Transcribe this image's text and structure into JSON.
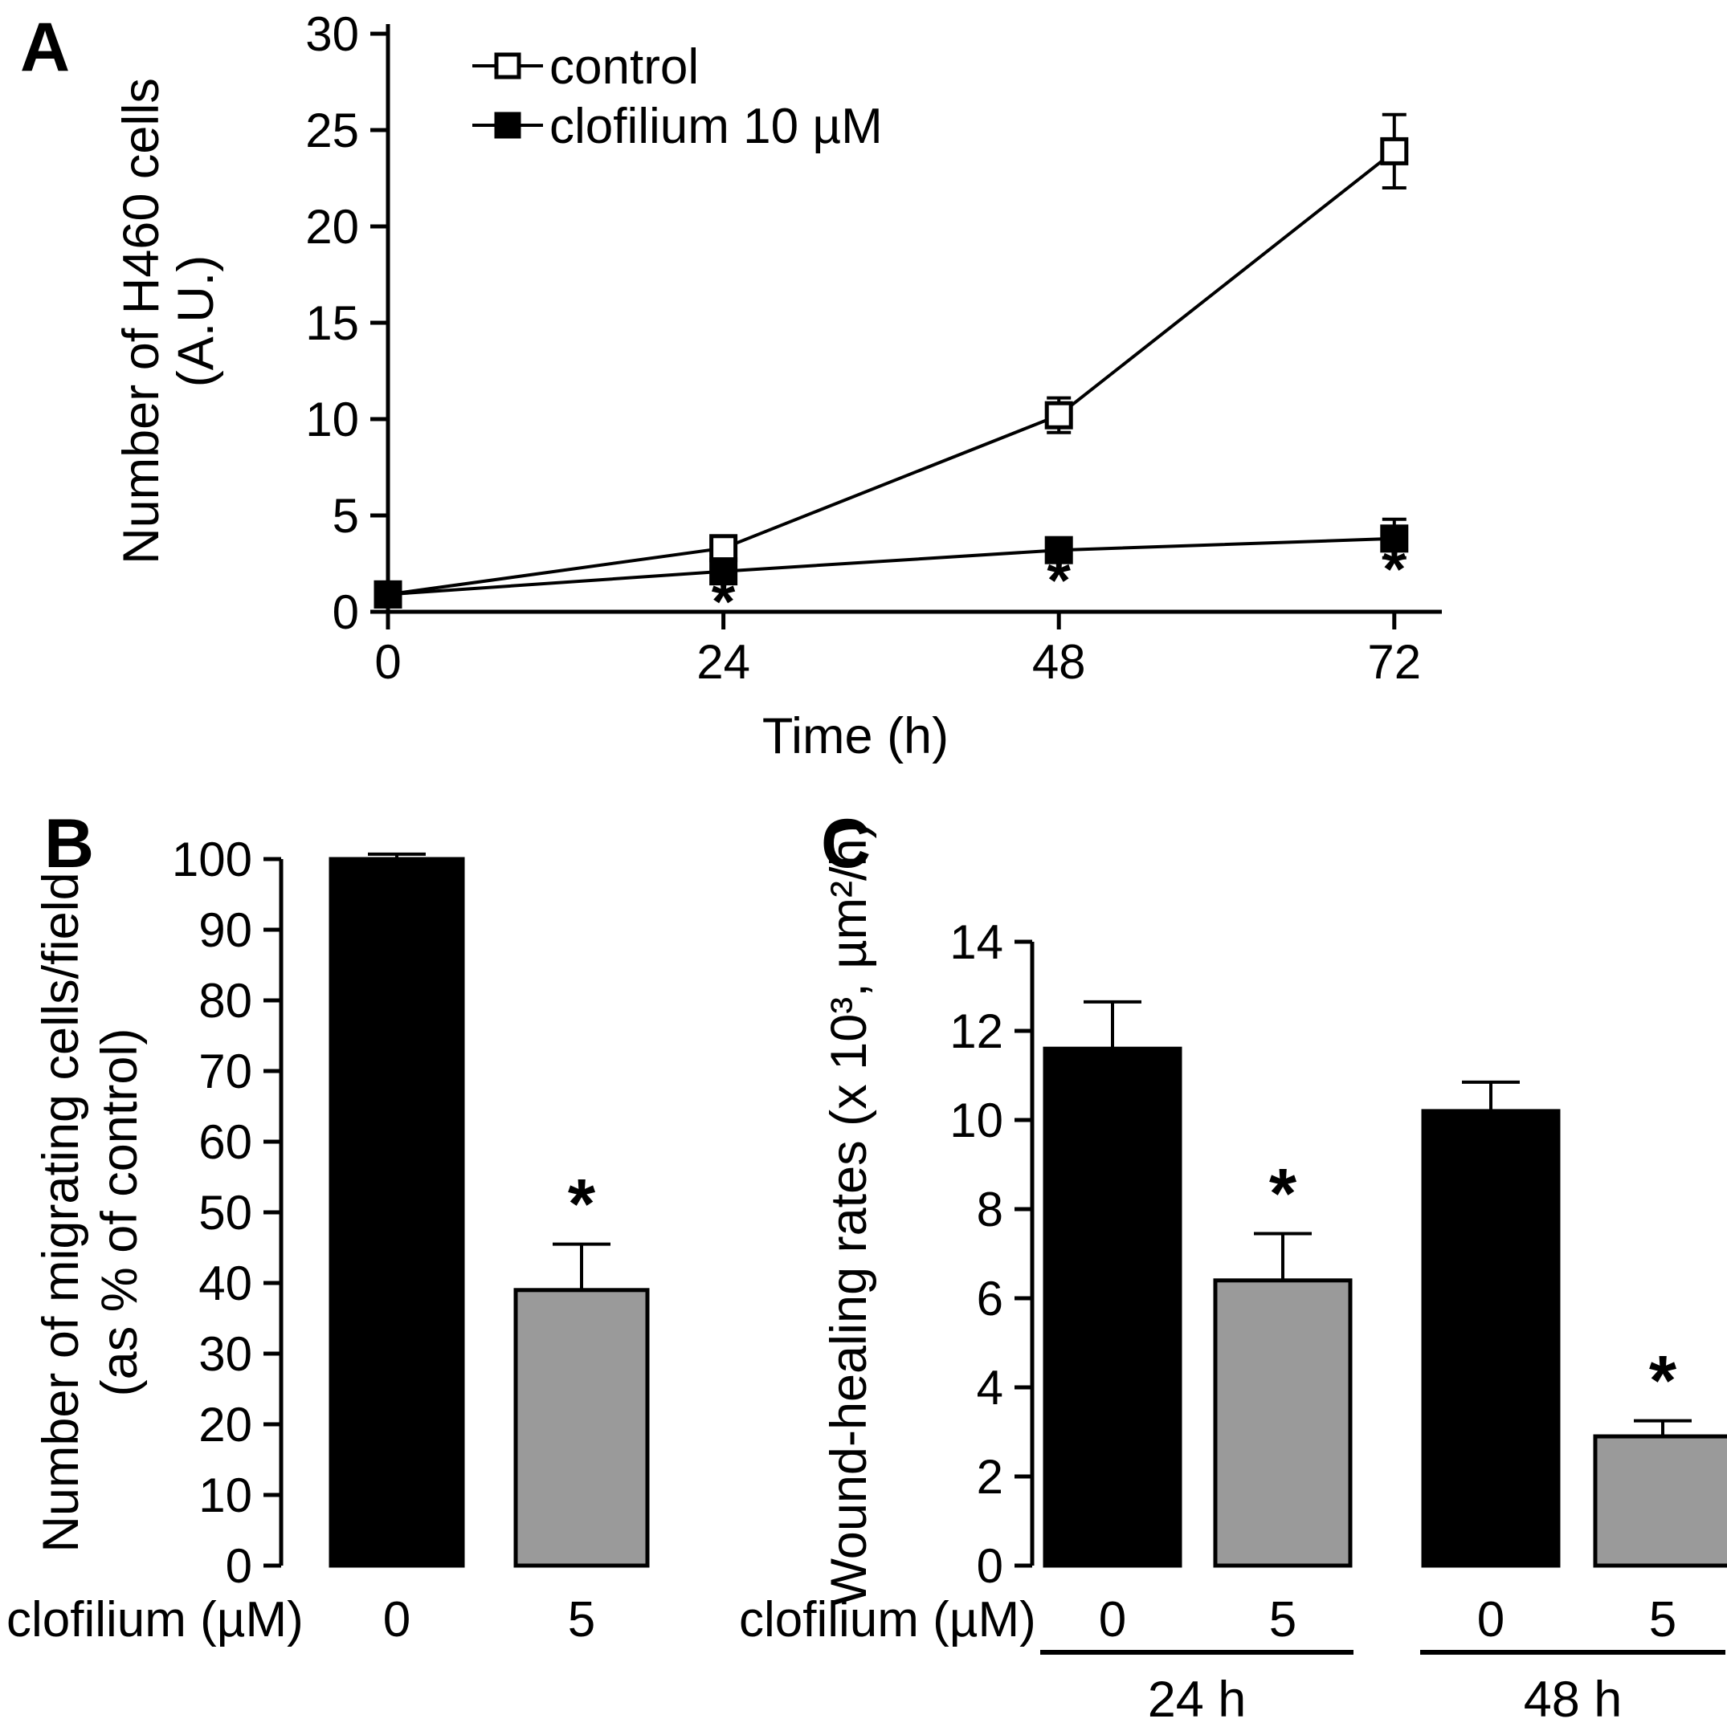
{
  "figure": {
    "panels": [
      {
        "letter": "A",
        "description": "growth curve of H460 cells with and without clofilium"
      },
      {
        "letter": "B",
        "description": "transwell migration bar chart"
      },
      {
        "letter": "C",
        "description": "wound-healing rates bar chart"
      }
    ],
    "colors": {
      "black_bar": "#000000",
      "gray_bar": "#9a9a9a",
      "background": "#ffffff"
    }
  },
  "chart_data": [
    {
      "panel": "A",
      "type": "line",
      "xlabel": "Time (h)",
      "ylabel_lines": [
        "Number of H460 cells",
        "(A.U.)"
      ],
      "x": [
        0,
        24,
        48,
        72
      ],
      "xticks": [
        0,
        24,
        48,
        72
      ],
      "yticks": [
        0,
        5,
        10,
        15,
        20,
        25,
        30
      ],
      "xlim": [
        0,
        72
      ],
      "ylim": [
        0,
        30
      ],
      "grid": false,
      "legend_position": "top-inside",
      "significance_symbol": "*",
      "series": [
        {
          "name": "control",
          "marker": "open-square",
          "color": "#000000",
          "values": [
            0.9,
            3.3,
            10.2,
            23.9
          ],
          "errors": [
            0.2,
            0.4,
            0.9,
            1.9
          ],
          "significant": [
            false,
            false,
            false,
            false
          ]
        },
        {
          "name": "clofilium 10 µM",
          "marker": "filled-square",
          "color": "#000000",
          "values": [
            0.9,
            2.1,
            3.2,
            3.8
          ],
          "errors": [
            0.2,
            0.5,
            0.6,
            1.0
          ],
          "significant": [
            false,
            true,
            true,
            true
          ]
        }
      ]
    },
    {
      "panel": "B",
      "type": "bar",
      "row_label": "clofilium (µM)",
      "ylabel_lines": [
        "Number of migrating cells/field",
        "(as % of control)"
      ],
      "categories": [
        "0",
        "5"
      ],
      "values": [
        100,
        39
      ],
      "errors": [
        0.7,
        6.5
      ],
      "significant": [
        false,
        true
      ],
      "bar_colors": [
        "#000000",
        "#9a9a9a"
      ],
      "yticks": [
        0,
        10,
        20,
        30,
        40,
        50,
        60,
        70,
        80,
        90,
        100
      ],
      "ylim": [
        0,
        100
      ],
      "grid": false,
      "significance_symbol": "*"
    },
    {
      "panel": "C",
      "type": "bar",
      "row_label": "clofilium (µM)",
      "ylabel": "Wound-healing rates (x 10³, µm²/h)",
      "groups": [
        {
          "label": "24 h",
          "categories": [
            "0",
            "5"
          ],
          "values": [
            11.6,
            6.4
          ],
          "errors": [
            1.05,
            1.05
          ],
          "significant": [
            false,
            true
          ]
        },
        {
          "label": "48 h",
          "categories": [
            "0",
            "5"
          ],
          "values": [
            10.2,
            2.9
          ],
          "errors": [
            0.65,
            0.35
          ],
          "significant": [
            false,
            true
          ]
        }
      ],
      "bar_colors": [
        "#000000",
        "#9a9a9a"
      ],
      "yticks": [
        0,
        2,
        4,
        6,
        8,
        10,
        12,
        14
      ],
      "ylim": [
        0,
        14
      ],
      "grid": false,
      "significance_symbol": "*"
    }
  ]
}
